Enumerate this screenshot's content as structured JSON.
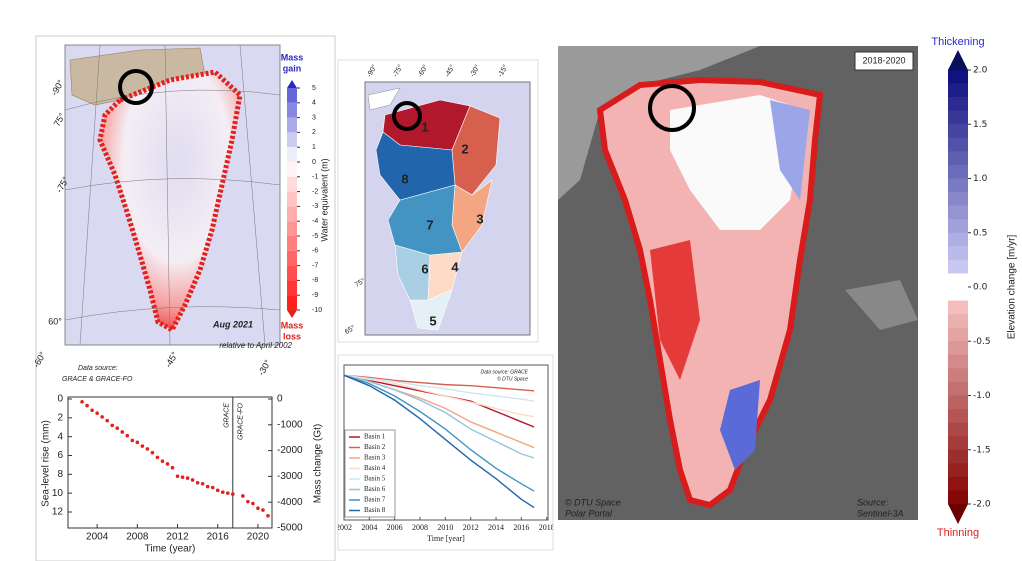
{
  "grace_map": {
    "gain_label": [
      "Mass",
      "gain"
    ],
    "loss_label": [
      "Mass",
      "loss"
    ],
    "axis_label": "Water equivalent (m)",
    "ticks": [
      5,
      4,
      3,
      2,
      1,
      0,
      -1,
      -2,
      -3,
      -4,
      -5,
      -6,
      -7,
      -8,
      -9,
      -10
    ],
    "date": "Aug 2021",
    "reference": "relative to April 2002",
    "source": [
      "Data source:",
      "GRACE & GRACE-FO"
    ],
    "graticule_labels": [
      "-90°",
      "75°",
      "-75°",
      "60°",
      "-60°",
      "-45°",
      "-30°"
    ]
  },
  "grace_series": {
    "type": "scatter",
    "y_label": "Sea-level rise (mm)",
    "y2_label": "Mass change (Gt)",
    "x_label": "Time (year)",
    "annotations": [
      "GRACE",
      "GRACE-FO"
    ],
    "divider_x": 2017.5,
    "xlim": [
      2001.1,
      2021.4
    ],
    "xticks": [
      2004,
      2008,
      2012,
      2016,
      2020
    ],
    "ylim": [
      0,
      13.7
    ],
    "yticks": [
      0,
      2,
      4,
      6,
      8,
      10,
      12
    ],
    "y2lim": [
      0,
      -5000
    ],
    "y2ticks": [
      0,
      -1000,
      -2000,
      -3000,
      -4000,
      -5000
    ],
    "color": "#e3201b",
    "x": [
      2002.5,
      2003,
      2003.5,
      2004,
      2004.5,
      2005,
      2005.5,
      2006,
      2006.5,
      2007,
      2007.5,
      2008,
      2008.5,
      2009,
      2009.5,
      2010,
      2010.5,
      2011,
      2011.5,
      2012,
      2012.5,
      2013,
      2013.5,
      2014,
      2014.5,
      2015,
      2015.5,
      2016,
      2016.5,
      2017,
      2017.5,
      2018.5,
      2019,
      2019.5,
      2020,
      2020.5,
      2021
    ],
    "values": [
      0.3,
      0.7,
      1.2,
      1.5,
      1.9,
      2.3,
      2.8,
      3.1,
      3.5,
      3.9,
      4.4,
      4.6,
      5.0,
      5.3,
      5.7,
      6.2,
      6.6,
      6.9,
      7.3,
      8.2,
      8.3,
      8.4,
      8.6,
      8.9,
      9.0,
      9.3,
      9.4,
      9.7,
      9.9,
      10.0,
      10.1,
      10.3,
      10.9,
      11.1,
      11.6,
      11.8,
      12.4
    ]
  },
  "basin_map": {
    "graticule_labels": [
      "-90°",
      "-75°",
      "-60°",
      "-45°",
      "-30°",
      "-15°",
      "75°",
      "65°"
    ],
    "basins": [
      {
        "label": "1",
        "color": "#b2182b"
      },
      {
        "label": "2",
        "color": "#d6604d"
      },
      {
        "label": "3",
        "color": "#f4a582"
      },
      {
        "label": "4",
        "color": "#fddbc7"
      },
      {
        "label": "5",
        "color": "#e4eff6"
      },
      {
        "label": "6",
        "color": "#a8cfe4"
      },
      {
        "label": "7",
        "color": "#4393c3"
      },
      {
        "label": "8",
        "color": "#2166ac"
      }
    ]
  },
  "basin_series": {
    "type": "line",
    "x_label": "Time [year]",
    "source": [
      "Data source: GRACE",
      "© DTU Space"
    ],
    "xlim": [
      2002,
      2018.1
    ],
    "xticks": [
      2002,
      2004,
      2006,
      2008,
      2010,
      2012,
      2014,
      2016,
      2018
    ],
    "ylim": [
      -140,
      10
    ],
    "x": [
      2002,
      2004,
      2006,
      2008,
      2010,
      2012,
      2014,
      2016,
      2017
    ],
    "series": [
      {
        "name": "Basin 1",
        "color": "#b2182b",
        "values": [
          0,
          -5,
          -10,
          -15,
          -20,
          -25,
          -35,
          -45,
          -50
        ]
      },
      {
        "name": "Basin 2",
        "color": "#d6604d",
        "values": [
          0,
          -2,
          -5,
          -7,
          -9,
          -10,
          -12,
          -14,
          -15
        ]
      },
      {
        "name": "Basin 3",
        "color": "#f4a582",
        "values": [
          0,
          -6,
          -14,
          -22,
          -32,
          -45,
          -55,
          -65,
          -70
        ]
      },
      {
        "name": "Basin 4",
        "color": "#fddbc7",
        "values": [
          0,
          -4,
          -8,
          -14,
          -20,
          -26,
          -32,
          -38,
          -40
        ]
      },
      {
        "name": "Basin 5",
        "color": "#d1e5f0",
        "values": [
          0,
          -3,
          -6,
          -10,
          -13,
          -17,
          -20,
          -23,
          -25
        ]
      },
      {
        "name": "Basin 6",
        "color": "#92c5de",
        "values": [
          0,
          -6,
          -14,
          -24,
          -36,
          -52,
          -64,
          -76,
          -80
        ]
      },
      {
        "name": "Basin 7",
        "color": "#4393c3",
        "values": [
          0,
          -8,
          -20,
          -35,
          -52,
          -72,
          -90,
          -105,
          -112
        ]
      },
      {
        "name": "Basin 8",
        "color": "#2166ac",
        "values": [
          0,
          -10,
          -24,
          -42,
          -62,
          -82,
          -100,
          -120,
          -128
        ]
      }
    ]
  },
  "dtu_map": {
    "period": "2018-2020",
    "credit": [
      "© DTU Space",
      "Polar Portal"
    ],
    "source": [
      "Source:",
      "Sentinel-3A"
    ],
    "top_label": "Thickening",
    "bottom_label": "Thinning",
    "axis_label": "Elevation change [m/yr]",
    "ylim": [
      -2,
      2
    ],
    "ticks": [
      {
        "value": 2,
        "label": "2.0"
      },
      1.5,
      {
        "value": 1,
        "label": "1.0"
      },
      0.5,
      {
        "value": 0,
        "label": "0.0"
      },
      -0.5,
      {
        "value": -1,
        "label": "-1.0"
      },
      -1.5,
      {
        "value": -2,
        "label": "-2.0"
      }
    ]
  }
}
